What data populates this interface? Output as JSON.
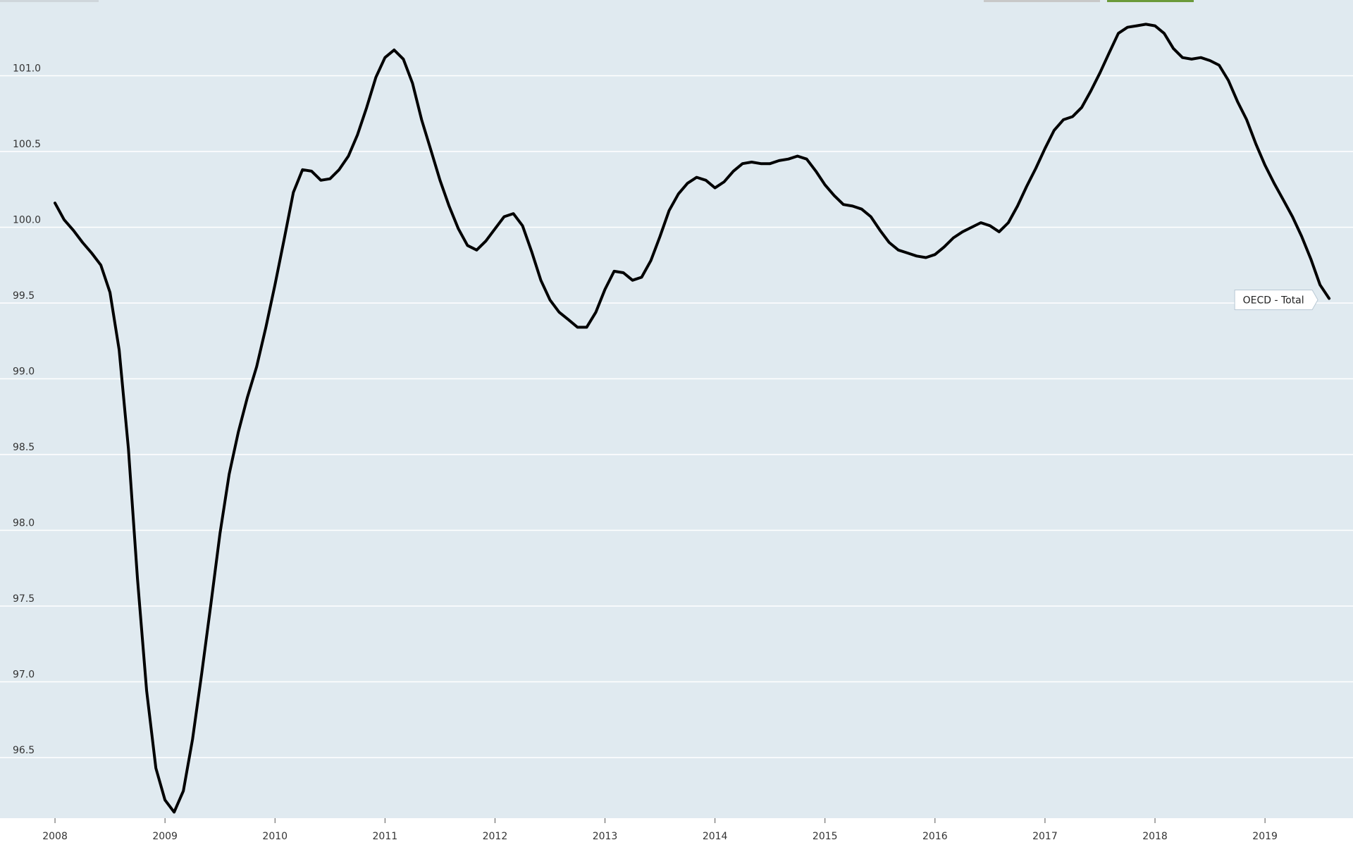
{
  "chart_data": {
    "type": "line",
    "x": [
      2008,
      2008.083,
      2008.167,
      2008.25,
      2008.333,
      2008.417,
      2008.5,
      2008.583,
      2008.667,
      2008.75,
      2008.833,
      2008.917,
      2009,
      2009.083,
      2009.167,
      2009.25,
      2009.333,
      2009.417,
      2009.5,
      2009.583,
      2009.667,
      2009.75,
      2009.833,
      2009.917,
      2010,
      2010.083,
      2010.167,
      2010.25,
      2010.333,
      2010.417,
      2010.5,
      2010.583,
      2010.667,
      2010.75,
      2010.833,
      2010.917,
      2011,
      2011.083,
      2011.167,
      2011.25,
      2011.333,
      2011.417,
      2011.5,
      2011.583,
      2011.667,
      2011.75,
      2011.833,
      2011.917,
      2012,
      2012.083,
      2012.167,
      2012.25,
      2012.333,
      2012.417,
      2012.5,
      2012.583,
      2012.667,
      2012.75,
      2012.833,
      2012.917,
      2013,
      2013.083,
      2013.167,
      2013.25,
      2013.333,
      2013.417,
      2013.5,
      2013.583,
      2013.667,
      2013.75,
      2013.833,
      2013.917,
      2014,
      2014.083,
      2014.167,
      2014.25,
      2014.333,
      2014.417,
      2014.5,
      2014.583,
      2014.667,
      2014.75,
      2014.833,
      2014.917,
      2015,
      2015.083,
      2015.167,
      2015.25,
      2015.333,
      2015.417,
      2015.5,
      2015.583,
      2015.667,
      2015.75,
      2015.833,
      2015.917,
      2016,
      2016.083,
      2016.167,
      2016.25,
      2016.333,
      2016.417,
      2016.5,
      2016.583,
      2016.667,
      2016.75,
      2016.833,
      2016.917,
      2017,
      2017.083,
      2017.167,
      2017.25,
      2017.333,
      2017.417,
      2017.5,
      2017.583,
      2017.667,
      2017.75,
      2017.833,
      2017.917,
      2018,
      2018.083,
      2018.167,
      2018.25,
      2018.333,
      2018.417,
      2018.5,
      2018.583,
      2018.667,
      2018.75,
      2018.833,
      2018.917,
      2019,
      2019.083,
      2019.167,
      2019.25,
      2019.333,
      2019.417,
      2019.5,
      2019.583
    ],
    "series": [
      {
        "name": "OECD - Total",
        "color": "#000000",
        "values": [
          100.16,
          100.05,
          99.98,
          99.9,
          99.83,
          99.75,
          99.57,
          99.19,
          98.54,
          97.68,
          96.94,
          96.43,
          96.22,
          96.14,
          96.28,
          96.62,
          97.05,
          97.51,
          97.98,
          98.37,
          98.65,
          98.88,
          99.08,
          99.34,
          99.62,
          99.92,
          100.23,
          100.38,
          100.37,
          100.31,
          100.32,
          100.38,
          100.47,
          100.61,
          100.79,
          100.99,
          101.12,
          101.17,
          101.11,
          100.95,
          100.71,
          100.51,
          100.31,
          100.14,
          99.99,
          99.88,
          99.85,
          99.91,
          99.99,
          100.07,
          100.09,
          100.01,
          99.84,
          99.65,
          99.52,
          99.44,
          99.39,
          99.34,
          99.34,
          99.44,
          99.59,
          99.71,
          99.7,
          99.65,
          99.67,
          99.78,
          99.94,
          100.11,
          100.22,
          100.29,
          100.33,
          100.31,
          100.26,
          100.3,
          100.37,
          100.42,
          100.43,
          100.42,
          100.42,
          100.44,
          100.45,
          100.47,
          100.45,
          100.37,
          100.28,
          100.21,
          100.15,
          100.14,
          100.12,
          100.07,
          99.98,
          99.9,
          99.85,
          99.83,
          99.81,
          99.8,
          99.82,
          99.87,
          99.93,
          99.97,
          100.0,
          100.03,
          100.01,
          99.97,
          100.03,
          100.14,
          100.27,
          100.39,
          100.52,
          100.64,
          100.71,
          100.73,
          100.79,
          100.9,
          101.02,
          101.15,
          101.28,
          101.32,
          101.33,
          101.34,
          101.33,
          101.28,
          101.18,
          101.12,
          101.11,
          101.12,
          101.1,
          101.07,
          100.97,
          100.83,
          100.71,
          100.55,
          100.41,
          100.29,
          100.18,
          100.07,
          99.94,
          99.79,
          99.62,
          99.53
        ]
      }
    ],
    "xlim": [
      2007.5,
      2019.8
    ],
    "xticks": [
      2008,
      2009,
      2010,
      2011,
      2012,
      2013,
      2014,
      2015,
      2016,
      2017,
      2018,
      2019
    ],
    "ylim": [
      96.1,
      101.5
    ],
    "yticks": [
      96.5,
      {
        "value": 97,
        "label": "97.0"
      },
      97.5,
      {
        "value": 98,
        "label": "98.0"
      },
      98.5,
      {
        "value": 99,
        "label": "99.0"
      },
      99.5,
      {
        "value": 100,
        "label": "100.0"
      },
      100.5,
      {
        "value": 101,
        "label": "101.0"
      }
    ],
    "grid": true,
    "background": "#e0eaf0"
  }
}
